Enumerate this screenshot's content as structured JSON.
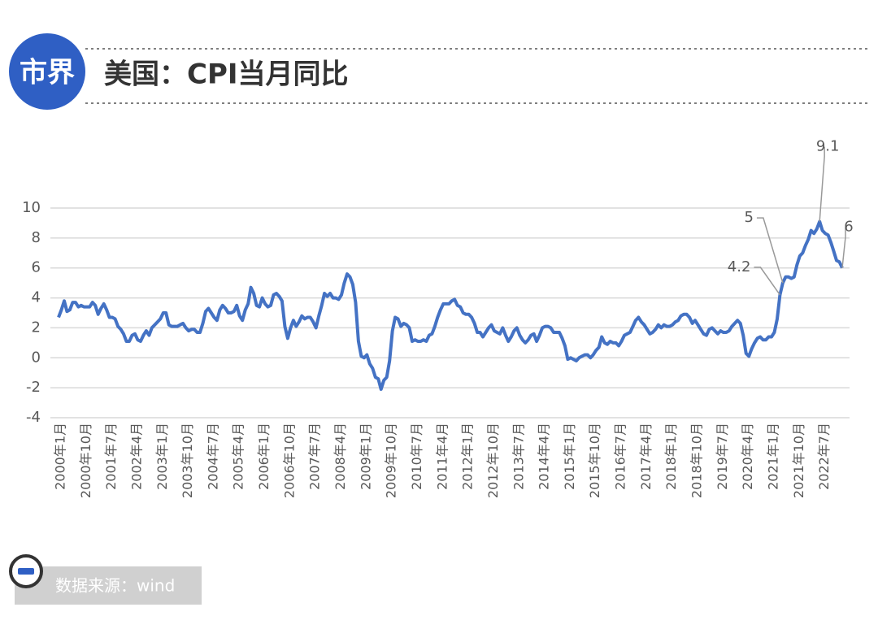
{
  "logo": "市界",
  "source": "数据来源：wind",
  "chart_data": {
    "type": "line",
    "title": "美国：CPI当月同比",
    "categories": [
      "2000年1月",
      null,
      null,
      null,
      null,
      null,
      null,
      null,
      null,
      "2000年10月",
      null,
      null,
      null,
      null,
      null,
      null,
      null,
      null,
      "2001年7月",
      null,
      null,
      null,
      null,
      null,
      null,
      null,
      null,
      "2002年4月",
      null,
      null,
      null,
      null,
      null,
      null,
      null,
      null,
      "2003年1月",
      null,
      null,
      null,
      null,
      null,
      null,
      null,
      null,
      "2003年10月",
      null,
      null,
      null,
      null,
      null,
      null,
      null,
      null,
      "2004年7月",
      null,
      null,
      null,
      null,
      null,
      null,
      null,
      null,
      "2005年4月",
      null,
      null,
      null,
      null,
      null,
      null,
      null,
      null,
      "2006年1月",
      null,
      null,
      null,
      null,
      null,
      null,
      null,
      null,
      "2006年10月",
      null,
      null,
      null,
      null,
      null,
      null,
      null,
      null,
      "2007年7月",
      null,
      null,
      null,
      null,
      null,
      null,
      null,
      null,
      "2008年4月",
      null,
      null,
      null,
      null,
      null,
      null,
      null,
      null,
      "2009年1月",
      null,
      null,
      null,
      null,
      null,
      null,
      null,
      null,
      "2009年10月",
      null,
      null,
      null,
      null,
      null,
      null,
      null,
      null,
      "2010年7月",
      null,
      null,
      null,
      null,
      null,
      null,
      null,
      null,
      "2011年4月",
      null,
      null,
      null,
      null,
      null,
      null,
      null,
      null,
      "2012年1月",
      null,
      null,
      null,
      null,
      null,
      null,
      null,
      null,
      "2012年10月",
      null,
      null,
      null,
      null,
      null,
      null,
      null,
      null,
      "2013年7月",
      null,
      null,
      null,
      null,
      null,
      null,
      null,
      null,
      "2014年4月",
      null,
      null,
      null,
      null,
      null,
      null,
      null,
      null,
      "2015年1月",
      null,
      null,
      null,
      null,
      null,
      null,
      null,
      null,
      "2015年10月",
      null,
      null,
      null,
      null,
      null,
      null,
      null,
      null,
      "2016年7月",
      null,
      null,
      null,
      null,
      null,
      null,
      null,
      null,
      "2017年4月",
      null,
      null,
      null,
      null,
      null,
      null,
      null,
      null,
      "2018年1月",
      null,
      null,
      null,
      null,
      null,
      null,
      null,
      null,
      "2018年10月",
      null,
      null,
      null,
      null,
      null,
      null,
      null,
      null,
      "2019年7月",
      null,
      null,
      null,
      null,
      null,
      null,
      null,
      null,
      "2020年4月",
      null,
      null,
      null,
      null,
      null,
      null,
      null,
      null,
      "2021年1月",
      null,
      null,
      null,
      null,
      null,
      null,
      null,
      null,
      "2021年10月",
      null,
      null,
      null,
      null,
      null,
      null,
      null,
      null,
      "2022年7月",
      null,
      null,
      null,
      null,
      null,
      null,
      null
    ],
    "series": [
      {
        "name": "CPI当月同比",
        "color": "#4472c4",
        "values": [
          2.7,
          3.2,
          3.8,
          3.1,
          3.2,
          3.7,
          3.7,
          3.4,
          3.5,
          3.4,
          3.4,
          3.4,
          3.7,
          3.5,
          2.9,
          3.3,
          3.6,
          3.2,
          2.7,
          2.7,
          2.6,
          2.1,
          1.9,
          1.6,
          1.1,
          1.1,
          1.5,
          1.6,
          1.2,
          1.1,
          1.5,
          1.8,
          1.5,
          2.0,
          2.2,
          2.4,
          2.6,
          3.0,
          3.0,
          2.2,
          2.1,
          2.1,
          2.1,
          2.2,
          2.3,
          2.0,
          1.8,
          1.9,
          1.9,
          1.7,
          1.7,
          2.3,
          3.1,
          3.3,
          3.0,
          2.7,
          2.5,
          3.2,
          3.5,
          3.3,
          3.0,
          3.0,
          3.1,
          3.5,
          2.8,
          2.5,
          3.2,
          3.6,
          4.7,
          4.3,
          3.5,
          3.4,
          4.0,
          3.6,
          3.4,
          3.5,
          4.2,
          4.3,
          4.1,
          3.8,
          2.1,
          1.3,
          2.0,
          2.5,
          2.1,
          2.4,
          2.8,
          2.6,
          2.7,
          2.7,
          2.4,
          2.0,
          2.8,
          3.5,
          4.3,
          4.1,
          4.3,
          4.0,
          4.0,
          3.9,
          4.2,
          5.0,
          5.6,
          5.4,
          4.9,
          3.7,
          1.1,
          0.1,
          0.0,
          0.2,
          -0.4,
          -0.7,
          -1.3,
          -1.4,
          -2.1,
          -1.5,
          -1.3,
          -0.2,
          1.8,
          2.7,
          2.6,
          2.1,
          2.3,
          2.2,
          2.0,
          1.1,
          1.2,
          1.1,
          1.1,
          1.2,
          1.1,
          1.5,
          1.6,
          2.1,
          2.7,
          3.2,
          3.6,
          3.6,
          3.6,
          3.8,
          3.9,
          3.5,
          3.4,
          3.0,
          2.9,
          2.9,
          2.7,
          2.3,
          1.7,
          1.7,
          1.4,
          1.7,
          2.0,
          2.2,
          1.8,
          1.7,
          1.6,
          2.0,
          1.5,
          1.1,
          1.4,
          1.8,
          2.0,
          1.5,
          1.2,
          1.0,
          1.2,
          1.5,
          1.6,
          1.1,
          1.5,
          2.0,
          2.1,
          2.1,
          2.0,
          1.7,
          1.7,
          1.7,
          1.3,
          0.8,
          -0.1,
          0.0,
          -0.1,
          -0.2,
          0.0,
          0.1,
          0.2,
          0.2,
          0.0,
          0.2,
          0.5,
          0.7,
          1.4,
          1.0,
          0.9,
          1.1,
          1.0,
          1.0,
          0.8,
          1.1,
          1.5,
          1.6,
          1.7,
          2.1,
          2.5,
          2.7,
          2.4,
          2.2,
          1.9,
          1.6,
          1.7,
          1.9,
          2.2,
          2.0,
          2.2,
          2.1,
          2.1,
          2.2,
          2.4,
          2.5,
          2.8,
          2.9,
          2.9,
          2.7,
          2.3,
          2.5,
          2.2,
          1.9,
          1.6,
          1.5,
          1.9,
          2.0,
          1.8,
          1.6,
          1.8,
          1.7,
          1.7,
          1.8,
          2.1,
          2.3,
          2.5,
          2.3,
          1.5,
          0.3,
          0.1,
          0.6,
          1.0,
          1.3,
          1.4,
          1.2,
          1.2,
          1.4,
          1.4,
          1.7,
          2.6,
          4.2,
          5.0,
          5.4,
          5.4,
          5.3,
          5.4,
          6.2,
          6.8,
          7.0,
          7.5,
          7.9,
          8.5,
          8.3,
          8.6,
          9.1,
          8.5,
          8.3,
          8.2,
          7.7,
          7.1,
          6.5,
          6.4,
          6.0
        ]
      }
    ],
    "annotated_indices": [
      255,
      256,
      269,
      277
    ],
    "ylim": [
      -4,
      10
    ],
    "yticks": [
      -4,
      -2,
      0,
      2,
      4,
      6,
      8,
      10
    ],
    "grid": true
  }
}
